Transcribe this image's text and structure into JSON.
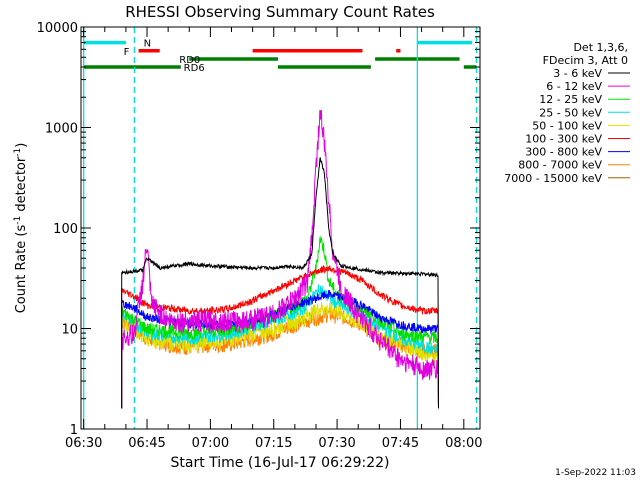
{
  "chart_data": {
    "type": "line",
    "title": "RHESSI Observing Summary Count Rates",
    "xlabel": "Start Time (16-Jul-17 06:29:22)",
    "ylabel_main": "Count Rate (s",
    "ylabel_sup1": "-1",
    "ylabel_mid": " detector",
    "ylabel_sup2": "-1",
    "ylabel_end": ")",
    "date_stamp": "1-Sep-2022 11:03",
    "y_scale": "log",
    "ylim": [
      1,
      10000
    ],
    "y_ticks": [
      {
        "value": 1,
        "label": "1"
      },
      {
        "value": 10,
        "label": "10"
      },
      {
        "value": 100,
        "label": "100"
      },
      {
        "value": 1000,
        "label": "1000"
      },
      {
        "value": 10000,
        "label": "10000"
      }
    ],
    "xlim": [
      "06:30",
      "08:03"
    ],
    "x_ticks": [
      "06:30",
      "06:45",
      "07:00",
      "07:15",
      "07:30",
      "07:45",
      "08:00"
    ],
    "legend": {
      "placement": "right",
      "header": [
        "Det 1,3,6,",
        "FDecim 3, Att 0"
      ]
    },
    "series": [
      {
        "name": "3 - 6 keV",
        "color": "#000000",
        "points": [
          [
            "06:39",
            36
          ],
          [
            "06:44",
            38
          ],
          [
            "06:45",
            50
          ],
          [
            "06:48",
            40
          ],
          [
            "06:55",
            44
          ],
          [
            "07:00",
            42
          ],
          [
            "07:10",
            40
          ],
          [
            "07:15",
            40
          ],
          [
            "07:18",
            42
          ],
          [
            "07:22",
            40
          ],
          [
            "07:24",
            55
          ],
          [
            "07:25",
            200
          ],
          [
            "07:26",
            500
          ],
          [
            "07:27",
            350
          ],
          [
            "07:28",
            100
          ],
          [
            "07:29",
            55
          ],
          [
            "07:31",
            42
          ],
          [
            "07:40",
            36
          ],
          [
            "07:50",
            35
          ],
          [
            "07:54",
            34
          ]
        ]
      },
      {
        "name": "6 - 12 keV",
        "color": "#e000e0",
        "points": [
          [
            "06:39",
            8
          ],
          [
            "06:42",
            9
          ],
          [
            "06:44",
            30
          ],
          [
            "06:45",
            70
          ],
          [
            "06:46",
            18
          ],
          [
            "06:50",
            12
          ],
          [
            "07:00",
            12
          ],
          [
            "07:08",
            12
          ],
          [
            "07:15",
            14
          ],
          [
            "07:20",
            20
          ],
          [
            "07:23",
            30
          ],
          [
            "07:24",
            80
          ],
          [
            "07:25",
            400
          ],
          [
            "07:26",
            1500
          ],
          [
            "07:27",
            700
          ],
          [
            "07:28",
            200
          ],
          [
            "07:29",
            60
          ],
          [
            "07:31",
            25
          ],
          [
            "07:35",
            14
          ],
          [
            "07:40",
            8
          ],
          [
            "07:45",
            5
          ],
          [
            "07:50",
            4
          ],
          [
            "07:54",
            4
          ]
        ]
      },
      {
        "name": "12 - 25 keV",
        "color": "#00e000",
        "points": [
          [
            "06:39",
            15
          ],
          [
            "06:45",
            10
          ],
          [
            "06:55",
            9
          ],
          [
            "07:05",
            10
          ],
          [
            "07:12",
            12
          ],
          [
            "07:18",
            15
          ],
          [
            "07:23",
            20
          ],
          [
            "07:25",
            40
          ],
          [
            "07:26",
            80
          ],
          [
            "07:27",
            60
          ],
          [
            "07:28",
            30
          ],
          [
            "07:30",
            22
          ],
          [
            "07:38",
            14
          ],
          [
            "07:45",
            9
          ],
          [
            "07:54",
            8
          ]
        ]
      },
      {
        "name": "25 - 50 keV",
        "color": "#00e0e0",
        "points": [
          [
            "06:39",
            14
          ],
          [
            "06:45",
            9
          ],
          [
            "06:55",
            8
          ],
          [
            "07:05",
            9
          ],
          [
            "07:15",
            12
          ],
          [
            "07:22",
            16
          ],
          [
            "07:26",
            25
          ],
          [
            "07:27",
            22
          ],
          [
            "07:30",
            18
          ],
          [
            "07:38",
            12
          ],
          [
            "07:45",
            8
          ],
          [
            "07:54",
            6
          ]
        ]
      },
      {
        "name": "50 - 100 keV",
        "color": "#e0e000",
        "points": [
          [
            "06:39",
            12
          ],
          [
            "06:45",
            8
          ],
          [
            "06:55",
            7
          ],
          [
            "07:05",
            8
          ],
          [
            "07:15",
            10
          ],
          [
            "07:22",
            13
          ],
          [
            "07:26",
            16
          ],
          [
            "07:30",
            15
          ],
          [
            "07:38",
            10
          ],
          [
            "07:45",
            7
          ],
          [
            "07:54",
            5
          ]
        ]
      },
      {
        "name": "100 - 300 keV",
        "color": "#ff0000",
        "points": [
          [
            "06:39",
            24
          ],
          [
            "06:42",
            21
          ],
          [
            "06:45",
            17
          ],
          [
            "06:50",
            16
          ],
          [
            "06:55",
            15
          ],
          [
            "07:00",
            15
          ],
          [
            "07:05",
            16
          ],
          [
            "07:10",
            19
          ],
          [
            "07:15",
            24
          ],
          [
            "07:20",
            30
          ],
          [
            "07:25",
            37
          ],
          [
            "07:28",
            40
          ],
          [
            "07:32",
            36
          ],
          [
            "07:36",
            30
          ],
          [
            "07:40",
            22
          ],
          [
            "07:45",
            17
          ],
          [
            "07:50",
            15
          ],
          [
            "07:54",
            15
          ]
        ]
      },
      {
        "name": "300 - 800 keV",
        "color": "#0000ff",
        "points": [
          [
            "06:39",
            18
          ],
          [
            "06:42",
            16
          ],
          [
            "06:45",
            13
          ],
          [
            "06:50",
            12
          ],
          [
            "06:55",
            11
          ],
          [
            "07:00",
            11
          ],
          [
            "07:05",
            11
          ],
          [
            "07:10",
            12
          ],
          [
            "07:15",
            14
          ],
          [
            "07:20",
            17
          ],
          [
            "07:25",
            20
          ],
          [
            "07:28",
            22
          ],
          [
            "07:32",
            20
          ],
          [
            "07:36",
            17
          ],
          [
            "07:40",
            13
          ],
          [
            "07:45",
            11
          ],
          [
            "07:50",
            10
          ],
          [
            "07:54",
            10
          ]
        ]
      },
      {
        "name": "800 - 7000 keV",
        "color": "#ff8000",
        "points": [
          [
            "06:39",
            12
          ],
          [
            "06:42",
            10
          ],
          [
            "06:45",
            8
          ],
          [
            "06:50",
            7
          ],
          [
            "06:55",
            6.5
          ],
          [
            "07:00",
            7
          ],
          [
            "07:05",
            7
          ],
          [
            "07:10",
            8
          ],
          [
            "07:15",
            9
          ],
          [
            "07:20",
            11
          ],
          [
            "07:25",
            13
          ],
          [
            "07:28",
            14
          ],
          [
            "07:32",
            13
          ],
          [
            "07:36",
            11
          ],
          [
            "07:40",
            8
          ],
          [
            "07:45",
            7
          ],
          [
            "07:50",
            6
          ],
          [
            "07:54",
            6
          ]
        ]
      },
      {
        "name": "7000 - 15000 keV",
        "color": "#a06000",
        "points": []
      }
    ],
    "flag_bars": [
      {
        "label": "N",
        "label_color": "#00e0e0",
        "color": "#00e0e0",
        "level": 7000,
        "segments": [
          [
            "06:30",
            "06:40"
          ],
          [
            "07:49",
            "08:02"
          ]
        ]
      },
      {
        "label": "F",
        "label_color": "#ff0000",
        "color": "#ff0000",
        "level": 5800,
        "segments": [
          [
            "06:43",
            "06:48"
          ],
          [
            "07:10",
            "07:36"
          ],
          [
            "07:44",
            "07:45"
          ]
        ]
      },
      {
        "label": "RD0",
        "label_color": "#008000",
        "color": "#008000",
        "level": 4800,
        "segments": [
          [
            "06:55",
            "07:16"
          ],
          [
            "07:39",
            "07:59"
          ]
        ]
      },
      {
        "label": "RD6",
        "label_color": "#008000",
        "color": "#008000",
        "level": 4000,
        "segments": [
          [
            "06:30",
            "06:53"
          ],
          [
            "07:16",
            "07:38"
          ],
          [
            "08:00",
            "08:03"
          ]
        ]
      }
    ],
    "vertical_markers": [
      {
        "time": "06:30",
        "style": "solid",
        "color": "#00e0e0"
      },
      {
        "time": "06:42",
        "style": "dashed",
        "color": "#00e0e0"
      },
      {
        "time": "07:49",
        "style": "solid",
        "color": "#00e0e0"
      },
      {
        "time": "08:03",
        "style": "dashed",
        "color": "#00e0e0"
      }
    ]
  }
}
